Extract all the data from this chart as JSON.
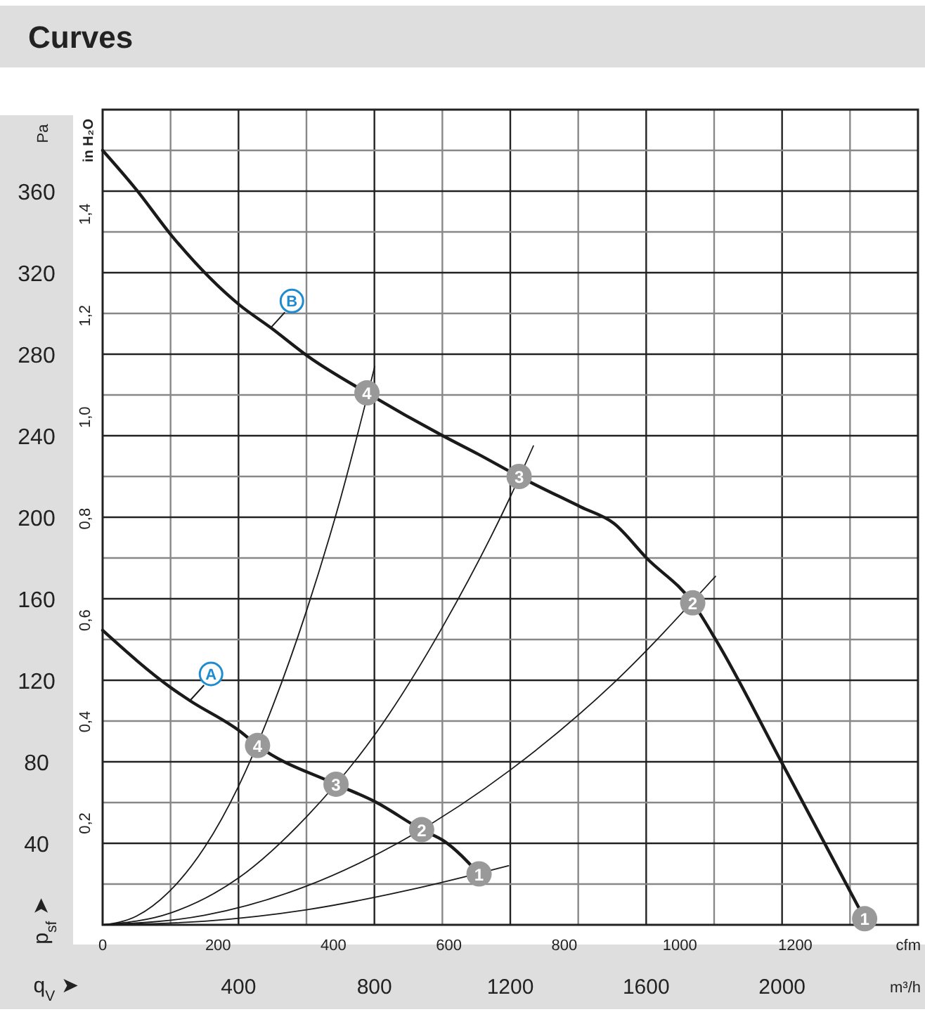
{
  "chart_data": {
    "type": "line",
    "title": "Curves",
    "xlabel": "m³/h",
    "x2label": "cfm",
    "ylabel": "Pa",
    "y2label": "in H₂O",
    "xlim": [
      0,
      2400
    ],
    "xticks": [
      {
        "value": 200,
        "label": null
      },
      400,
      {
        "value": 600,
        "label": null
      },
      800,
      {
        "value": 1000,
        "label": null
      },
      1200,
      {
        "value": 1400,
        "label": null
      },
      1600,
      {
        "value": 1800,
        "label": null
      },
      2000,
      {
        "value": 2200,
        "label": null
      }
    ],
    "x2lim": [
      0,
      1412.6
    ],
    "x2ticks": [
      0,
      200,
      400,
      600,
      800,
      1000,
      1200
    ],
    "ylim": [
      0,
      400
    ],
    "yticks": [
      {
        "value": 20,
        "label": null
      },
      40,
      {
        "value": 60,
        "label": null
      },
      80,
      {
        "value": 100,
        "label": null
      },
      120,
      {
        "value": 140,
        "label": null
      },
      160,
      {
        "value": 180,
        "label": null
      },
      200,
      {
        "value": 220,
        "label": null
      },
      240,
      {
        "value": 260,
        "label": null
      },
      280,
      {
        "value": 300,
        "label": null
      },
      320,
      {
        "value": 340,
        "label": null
      },
      360,
      {
        "value": 380,
        "label": null
      }
    ],
    "y2lim": [
      0,
      1.606
    ],
    "y2ticks": [
      {
        "value": 0.2,
        "label": "0,2"
      },
      {
        "value": 0.4,
        "label": "0,4"
      },
      {
        "value": 0.6,
        "label": "0,6"
      },
      {
        "value": 0.8,
        "label": "0,8"
      },
      {
        "value": 1.0,
        "label": "1,0"
      },
      {
        "value": 1.2,
        "label": "1,2"
      },
      {
        "value": 1.4,
        "label": "1,4"
      }
    ],
    "grid": true,
    "marker": "none",
    "line_style": "solid",
    "series": [
      {
        "name": "B",
        "color": "#1a1a1a",
        "x": [
          0,
          98,
          204,
          404,
          495,
          604,
          778,
          1001,
          1105,
          1226,
          1408,
          1505,
          1601,
          1737,
          1808,
          2001,
          2243
        ],
        "values": [
          380,
          361,
          338,
          304,
          293,
          279,
          261,
          240,
          231,
          220,
          205,
          197,
          180,
          158,
          139,
          79,
          3
        ]
      },
      {
        "name": "A",
        "color": "#1a1a1a",
        "x": [
          0,
          204,
          257,
          404,
          456,
          687,
          801,
          939,
          1006,
          1108
        ],
        "values": [
          144.5,
          116,
          110,
          95,
          88,
          69,
          60.5,
          46.7,
          41,
          25
        ]
      },
      {
        "color": "#1a1a1a",
        "x": [
          0,
          100,
          200,
          300,
          400,
          500,
          600,
          700,
          801
        ],
        "values": [
          0,
          4.3,
          17,
          38,
          68,
          107,
          154,
          209,
          274
        ]
      },
      {
        "color": "#1a1a1a",
        "x": [
          0,
          200,
          400,
          600,
          800,
          1000,
          1200,
          1268
        ],
        "values": [
          0,
          5.8,
          23,
          53,
          93,
          146,
          210,
          235
        ]
      },
      {
        "color": "#1a1a1a",
        "x": [
          0,
          300,
          600,
          900,
          1200,
          1500,
          1804
        ],
        "values": [
          0,
          4.7,
          19,
          43,
          76,
          118,
          171
        ]
      },
      {
        "color": "#1a1a1a",
        "x": [
          0,
          300,
          600,
          900,
          1195
        ],
        "values": [
          0,
          1.8,
          7.4,
          17,
          29
        ]
      }
    ],
    "annotations": [
      {
        "text": "4",
        "x": 778,
        "y": 261
      },
      {
        "text": "3",
        "x": 1226,
        "y": 220
      },
      {
        "text": "2",
        "x": 1737,
        "y": 158
      },
      {
        "text": "1",
        "x": 2243,
        "y": 3
      },
      {
        "text": "4",
        "x": 456,
        "y": 88
      },
      {
        "text": "3",
        "x": 687,
        "y": 69
      },
      {
        "text": "2",
        "x": 939,
        "y": 46.7
      },
      {
        "text": "1",
        "x": 1108,
        "y": 25
      },
      "p$_{sf}$ ➤",
      "q$_{V}$ ➤"
    ]
  }
}
